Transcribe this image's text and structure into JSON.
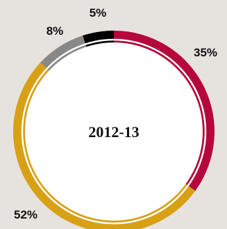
{
  "chart_data": {
    "type": "pie",
    "style": "donut",
    "title": "2012-13",
    "slices": [
      {
        "label": "35%",
        "value": 35,
        "color": "#b5073c"
      },
      {
        "label": "52%",
        "value": 52,
        "color": "#d8a015"
      },
      {
        "label": "8%",
        "value": 8,
        "color": "#888888"
      },
      {
        "label": "5%",
        "value": 5,
        "color": "#000000"
      }
    ]
  },
  "colors": {
    "background": "#e6e3df",
    "center_fill": "#ffffff",
    "separator_ring": "#ffffff"
  }
}
